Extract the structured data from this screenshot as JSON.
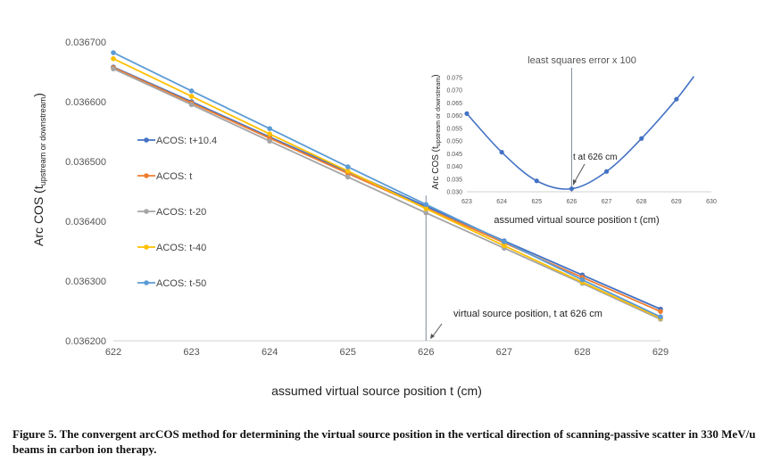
{
  "caption": "Figure 5. The convergent arcCOS method for determining the virtual source position in the vertical direction of scanning-passive scatter in 330 MeV/u beams in carbon ion therapy.",
  "chart_data": [
    {
      "type": "line",
      "title": "",
      "xlabel": "assumed virtual source position t (cm)",
      "ylabel_main": "Arc COS (t",
      "ylabel_sub": "upstream or downstream",
      "ylabel_end": ")",
      "xlim": [
        622,
        629
      ],
      "ylim": [
        0.0362,
        0.0367
      ],
      "x_ticks": [
        622,
        623,
        624,
        625,
        626,
        627,
        628,
        629
      ],
      "y_ticks": [
        "0.036200",
        "0.036300",
        "0.036400",
        "0.036500",
        "0.036600",
        "0.036700"
      ],
      "y_tick_values": [
        0.0362,
        0.0363,
        0.0364,
        0.0365,
        0.0366,
        0.0367
      ],
      "x": [
        622,
        623,
        624,
        625,
        626,
        627,
        628,
        629
      ],
      "series": [
        {
          "name": "ACOS: t+10.4",
          "color": "#4472C4",
          "values": [
            0.036658,
            0.0366,
            0.036541,
            0.036483,
            0.036425,
            0.036367,
            0.03631,
            0.036253
          ]
        },
        {
          "name": "ACOS: t",
          "color": "#ED7D31",
          "values": [
            0.036657,
            0.036598,
            0.036539,
            0.03648,
            0.036422,
            0.036364,
            0.036306,
            0.036249
          ]
        },
        {
          "name": "ACOS: t-20",
          "color": "#A5A5A5",
          "values": [
            0.036655,
            0.036595,
            0.036534,
            0.036474,
            0.036414,
            0.036355,
            0.036296,
            0.036236
          ]
        },
        {
          "name": "ACOS: t-40",
          "color": "#FFC000",
          "values": [
            0.036672,
            0.036609,
            0.036546,
            0.036484,
            0.036421,
            0.036359,
            0.036298,
            0.036238
          ]
        },
        {
          "name": "ACOS: t-50",
          "color": "#5B9BD5",
          "values": [
            0.036682,
            0.036618,
            0.036555,
            0.036491,
            0.036428,
            0.036366,
            0.036302,
            0.03624
          ]
        }
      ],
      "vertical_line_x": 626,
      "annotation": "virtual source position, t  at 626 cm"
    },
    {
      "type": "line",
      "title": "least squares error x 100",
      "xlabel": "assumed virtual source position t (cm)",
      "ylabel_main": "Arc COS (t",
      "ylabel_sub": "upstream or downstream",
      "ylabel_end": ")",
      "xlim": [
        623,
        630
      ],
      "ylim": [
        0.03,
        0.075
      ],
      "x_ticks": [
        623,
        624,
        625,
        626,
        627,
        628,
        629,
        630
      ],
      "y_ticks": [
        "0.030",
        "0.035",
        "0.040",
        "0.045",
        "0.050",
        "0.055",
        "0.060",
        "0.065",
        "0.070",
        "0.075"
      ],
      "y_tick_values": [
        0.03,
        0.035,
        0.04,
        0.045,
        0.05,
        0.055,
        0.06,
        0.065,
        0.07,
        0.075
      ],
      "points_x": [
        623,
        624,
        625,
        626,
        627,
        628,
        629
      ],
      "points_y": [
        0.0608,
        0.0456,
        0.0343,
        0.0312,
        0.038,
        0.051,
        0.0665
      ],
      "curve_end": [
        629.5,
        0.0755
      ],
      "series_color": "#4472C4",
      "vertical_line_x": 626,
      "annotation": "t  at 626 cm"
    }
  ]
}
